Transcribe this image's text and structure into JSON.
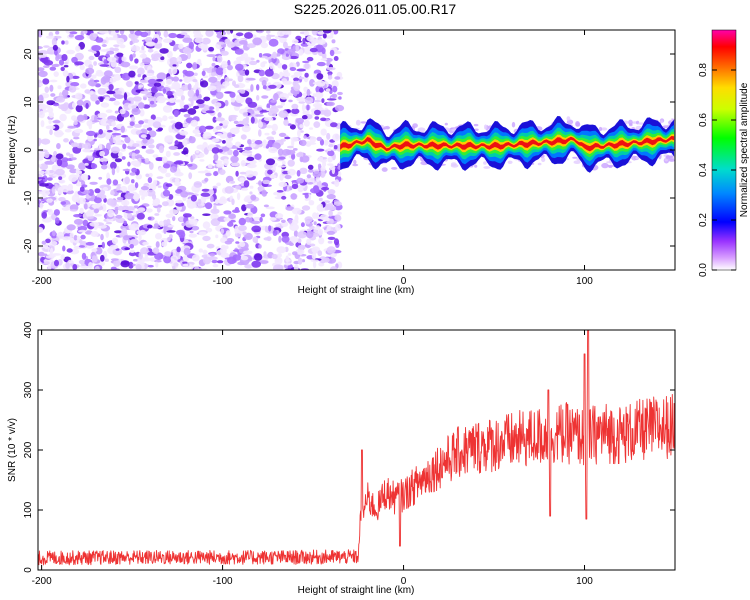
{
  "title": "S225.2026.011.05.00.R17",
  "colors": {
    "signal": "#ee3333",
    "speckle": [
      "#f3e8ff",
      "#e2ccff",
      "#c9a3ff",
      "#a56bff",
      "#7f38f0",
      "#5a10d8"
    ]
  },
  "chart_data": [
    {
      "type": "heatmap",
      "title": "",
      "xlabel": "Height of straight line (km)",
      "ylabel": "Frequency (Hz)",
      "xlim": [
        -202,
        150
      ],
      "ylim": [
        -25,
        25
      ],
      "xticks": [
        -200,
        -100,
        0,
        100
      ],
      "yticks": [
        -20,
        -10,
        0,
        10,
        20
      ],
      "noise_region_x": [
        -202,
        -35
      ],
      "band": {
        "x_start": -35,
        "x_end": 150,
        "center_hz_points": [
          [
            -35,
            0.6
          ],
          [
            -20,
            2.0
          ],
          [
            -10,
            0.3
          ],
          [
            0,
            1.0
          ],
          [
            50,
            0.8
          ],
          [
            80,
            1.6
          ],
          [
            95,
            2.2
          ],
          [
            100,
            0.5
          ],
          [
            120,
            1.2
          ],
          [
            150,
            2.3
          ]
        ]
      },
      "colorbar": {
        "label": "Normalized spectral amplitude",
        "range": [
          0,
          0.96
        ],
        "ticks": [
          0.0,
          0.2,
          0.4,
          0.6,
          0.8
        ]
      }
    },
    {
      "type": "line",
      "title": "",
      "xlabel": "Height of straight line (km)",
      "ylabel": "SNR (10 * v/v)",
      "xlim": [
        -202,
        150
      ],
      "ylim": [
        0,
        400
      ],
      "xticks": [
        -200,
        -100,
        0,
        100
      ],
      "yticks": [
        0,
        100,
        200,
        300,
        400
      ],
      "series": [
        {
          "name": "SNR",
          "x": [
            -202,
            -150,
            -100,
            -60,
            -25,
            -24,
            -20,
            -15,
            -10,
            -5,
            0,
            10,
            20,
            30,
            40,
            50,
            60,
            70,
            80,
            90,
            100,
            110,
            120,
            130,
            140,
            150
          ],
          "y": [
            20,
            21,
            21,
            21,
            22,
            80,
            120,
            100,
            130,
            120,
            125,
            150,
            175,
            195,
            205,
            210,
            215,
            220,
            225,
            228,
            220,
            230,
            225,
            232,
            238,
            240
          ],
          "spikes": [
            [
              -23,
              200
            ],
            [
              -2,
              40
            ],
            [
              80,
              300
            ],
            [
              81,
              90
            ],
            [
              100,
              360
            ],
            [
              101,
              85
            ],
            [
              102,
              420
            ]
          ]
        }
      ]
    }
  ]
}
